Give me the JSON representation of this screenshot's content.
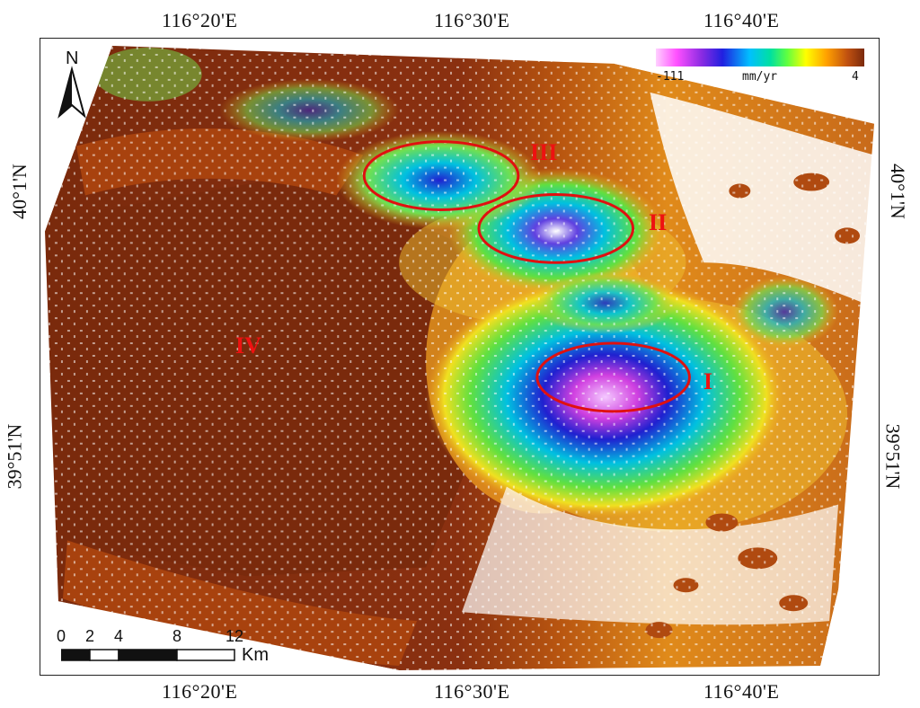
{
  "axes": {
    "lon_labels": [
      "116°20'E",
      "116°30'E",
      "116°40'E"
    ],
    "lat_labels": [
      "40°1'N",
      "39°51'N"
    ]
  },
  "legend": {
    "min": "-111",
    "unit": "mm/yr",
    "max": "4",
    "colors": [
      "#ffd0ff",
      "#ff50ff",
      "#8a2be2",
      "#2020e0",
      "#00c0ff",
      "#00e0a0",
      "#60ff40",
      "#ffff00",
      "#ffa000",
      "#c05010",
      "#7a2a0c"
    ]
  },
  "north_arrow": {
    "label": "N",
    "icon": "north-arrow-icon"
  },
  "scale_bar": {
    "ticks": [
      "0",
      "2",
      "4",
      "8",
      "12"
    ],
    "unit": "Km"
  },
  "regions": [
    {
      "id": "I",
      "label": "I"
    },
    {
      "id": "II",
      "label": "II"
    },
    {
      "id": "III",
      "label": "III"
    },
    {
      "id": "IV",
      "label": "IV"
    }
  ],
  "colors": {
    "stable_dark": "#7a2a0c",
    "stable_mid": "#a8420e",
    "stable_light": "#c86a1a",
    "transition": "#f0a020",
    "moderate": "#60e040",
    "strong": "#00c0e0",
    "severe": "#2020d0",
    "extreme": "#d040e0",
    "ellipse": "#e01010"
  }
}
